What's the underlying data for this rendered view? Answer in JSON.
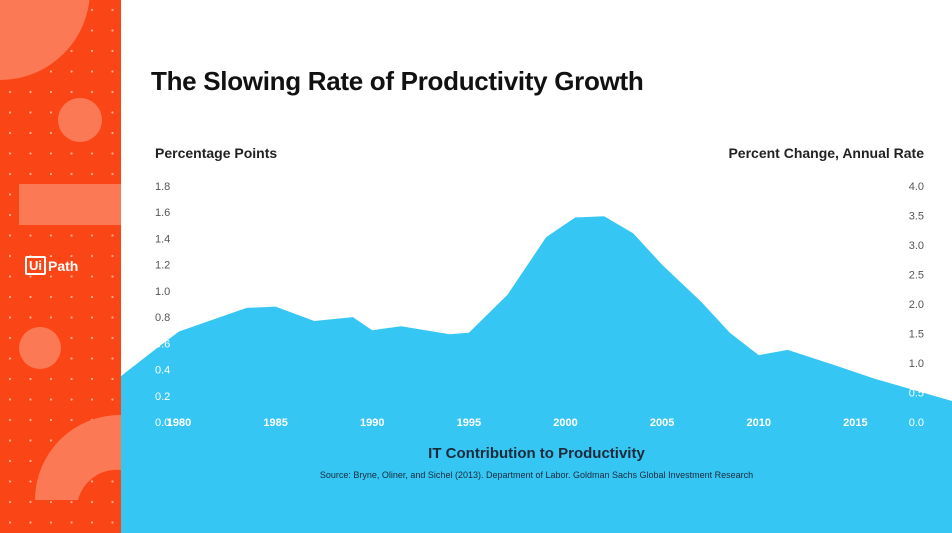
{
  "brand": {
    "logo_box": "Ui",
    "logo_word": "Path",
    "accent": "#fa4616",
    "fill": "#36c6f4"
  },
  "chart_data": {
    "type": "area",
    "title": "The Slowing Rate of Productivity Growth",
    "ylabel_left": "Percentage Points",
    "ylabel_right": "Percent Change, Annual Rate",
    "xlabel": "IT Contribution to Productivity",
    "source": "Source: Bryne, Oliner, and Sichel (2013). Department of Labor. Goldman Sachs Global Investment Research",
    "left_ticks": [
      "0.0",
      "0.2",
      "0.4",
      "0.6",
      "0.8",
      "1.0",
      "1.2",
      "1.4",
      "1.6",
      "1.8"
    ],
    "right_ticks": [
      "0.0",
      "0.5",
      "1.0",
      "1.5",
      "2.0",
      "2.5",
      "3.0",
      "3.5",
      "4.0"
    ],
    "x_ticks": [
      "1980",
      "1985",
      "1990",
      "1995",
      "2000",
      "2005",
      "2010",
      "2015"
    ],
    "ylim_left": [
      0,
      1.8
    ],
    "xlim": [
      1977,
      2020
    ],
    "series": [
      {
        "name": "IT Contribution to Productivity",
        "x": [
          1977,
          1979,
          1980,
          1983.5,
          1985,
          1987,
          1989,
          1990,
          1991.5,
          1994,
          1995,
          1997,
          1999,
          2000.5,
          2002,
          2003.5,
          2005,
          2007,
          2008.5,
          2010,
          2011.5,
          2014,
          2016,
          2020
        ],
        "values": [
          0.35,
          0.58,
          0.69,
          0.87,
          0.88,
          0.77,
          0.8,
          0.7,
          0.73,
          0.67,
          0.68,
          0.97,
          1.41,
          1.56,
          1.57,
          1.44,
          1.2,
          0.92,
          0.68,
          0.51,
          0.55,
          0.43,
          0.33,
          0.16
        ]
      }
    ]
  }
}
